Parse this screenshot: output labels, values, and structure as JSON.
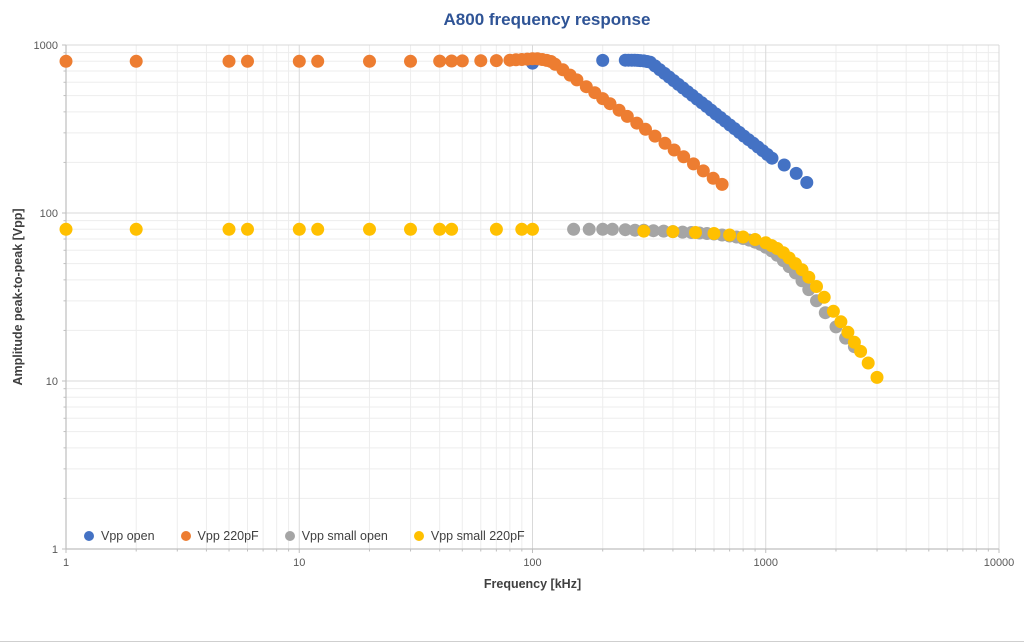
{
  "chart_data": {
    "type": "scatter",
    "title": "A800 frequency response",
    "xlabel": "Frequency [kHz]",
    "ylabel": "Amplitude peak-to-peak [Vpp]",
    "xscale": "log",
    "yscale": "log",
    "xlim": [
      1,
      10000
    ],
    "ylim": [
      1,
      1000
    ],
    "x_tick_labels": [
      "1",
      "10",
      "100",
      "1000",
      "10000"
    ],
    "y_tick_labels": [
      "1",
      "10",
      "100",
      "1000"
    ],
    "grid": "major and minor log gridlines",
    "legend_position": "bottom-left inside plot",
    "colors": {
      "title": "#2F5496",
      "axis_text": "#595959",
      "axis_title_text": "#404040",
      "major_grid": "#D9D9D9",
      "minor_grid": "#EDEDED",
      "axis_line": "#BFBFBF"
    },
    "series": [
      {
        "name": "Vpp open",
        "color": "#4472C4",
        "points": [
          [
            100,
            780
          ],
          [
            200,
            810
          ],
          [
            250,
            812
          ],
          [
            258,
            812
          ],
          [
            266,
            812
          ],
          [
            274,
            812
          ],
          [
            282,
            810
          ],
          [
            290,
            808
          ],
          [
            300,
            804
          ],
          [
            310,
            798
          ],
          [
            320,
            790
          ],
          [
            335,
            751
          ],
          [
            351,
            714
          ],
          [
            368,
            678
          ],
          [
            385,
            645
          ],
          [
            403,
            614
          ],
          [
            422,
            583
          ],
          [
            442,
            555
          ],
          [
            463,
            527
          ],
          [
            485,
            501
          ],
          [
            508,
            476
          ],
          [
            532,
            453
          ],
          [
            557,
            431
          ],
          [
            583,
            410
          ],
          [
            611,
            389
          ],
          [
            640,
            370
          ],
          [
            670,
            352
          ],
          [
            702,
            334
          ],
          [
            735,
            318
          ],
          [
            770,
            302
          ],
          [
            806,
            287
          ],
          [
            844,
            273
          ],
          [
            884,
            260
          ],
          [
            926,
            247
          ],
          [
            970,
            235
          ],
          [
            1016,
            223
          ],
          [
            1064,
            212
          ],
          [
            1200,
            193
          ],
          [
            1350,
            172
          ],
          [
            1500,
            152
          ]
        ]
      },
      {
        "name": "Vpp 220pF",
        "color": "#ED7D31",
        "points": [
          [
            1,
            800
          ],
          [
            2,
            800
          ],
          [
            5,
            800
          ],
          [
            6,
            800
          ],
          [
            10,
            800
          ],
          [
            12,
            800
          ],
          [
            20,
            800
          ],
          [
            30,
            800
          ],
          [
            40,
            802
          ],
          [
            45,
            803
          ],
          [
            50,
            804
          ],
          [
            60,
            806
          ],
          [
            70,
            808
          ],
          [
            80,
            812
          ],
          [
            85,
            816
          ],
          [
            90,
            820
          ],
          [
            95,
            824
          ],
          [
            100,
            828
          ],
          [
            105,
            828
          ],
          [
            110,
            820
          ],
          [
            115,
            810
          ],
          [
            120,
            798
          ],
          [
            125,
            768
          ],
          [
            135,
            712
          ],
          [
            145,
            662
          ],
          [
            155,
            620
          ],
          [
            170,
            565
          ],
          [
            185,
            520
          ],
          [
            200,
            480
          ],
          [
            215,
            447
          ],
          [
            235,
            409
          ],
          [
            255,
            376
          ],
          [
            280,
            343
          ],
          [
            305,
            315
          ],
          [
            335,
            287
          ],
          [
            370,
            260
          ],
          [
            405,
            237
          ],
          [
            445,
            216
          ],
          [
            490,
            196
          ],
          [
            540,
            178
          ],
          [
            595,
            161
          ],
          [
            650,
            148
          ]
        ]
      },
      {
        "name": "Vpp small open",
        "color": "#A5A5A5",
        "points": [
          [
            150,
            80
          ],
          [
            175,
            80
          ],
          [
            200,
            80
          ],
          [
            220,
            80
          ],
          [
            250,
            79.5
          ],
          [
            275,
            79
          ],
          [
            300,
            79
          ],
          [
            330,
            78.5
          ],
          [
            365,
            78
          ],
          [
            400,
            77.5
          ],
          [
            440,
            77
          ],
          [
            480,
            76.5
          ],
          [
            520,
            76
          ],
          [
            560,
            75.5
          ],
          [
            600,
            75
          ],
          [
            650,
            74
          ],
          [
            700,
            73
          ],
          [
            750,
            72
          ],
          [
            800,
            70.5
          ],
          [
            850,
            69
          ],
          [
            900,
            67
          ],
          [
            950,
            65
          ],
          [
            1000,
            62.5
          ],
          [
            1060,
            59.5
          ],
          [
            1120,
            56
          ],
          [
            1190,
            52
          ],
          [
            1260,
            48
          ],
          [
            1340,
            44
          ],
          [
            1430,
            39.5
          ],
          [
            1530,
            35
          ],
          [
            1650,
            30
          ],
          [
            1800,
            25.5
          ],
          [
            2000,
            21
          ],
          [
            2200,
            18
          ],
          [
            2400,
            16
          ]
        ]
      },
      {
        "name": "Vpp small 220pF",
        "color": "#FFC000",
        "points": [
          [
            1,
            80
          ],
          [
            2,
            80
          ],
          [
            5,
            80
          ],
          [
            6,
            80
          ],
          [
            10,
            80
          ],
          [
            12,
            80
          ],
          [
            20,
            80
          ],
          [
            30,
            80
          ],
          [
            40,
            80
          ],
          [
            45,
            80
          ],
          [
            70,
            80
          ],
          [
            90,
            80
          ],
          [
            100,
            80
          ],
          [
            300,
            78
          ],
          [
            400,
            77.5
          ],
          [
            500,
            76.5
          ],
          [
            600,
            75.5
          ],
          [
            700,
            74
          ],
          [
            800,
            72
          ],
          [
            900,
            69.5
          ],
          [
            1000,
            66.5
          ],
          [
            1060,
            64
          ],
          [
            1120,
            61.5
          ],
          [
            1190,
            58
          ],
          [
            1260,
            54
          ],
          [
            1340,
            50
          ],
          [
            1430,
            46
          ],
          [
            1530,
            41.5
          ],
          [
            1650,
            36.5
          ],
          [
            1780,
            31.5
          ],
          [
            1950,
            26
          ],
          [
            2100,
            22.5
          ],
          [
            2250,
            19.5
          ],
          [
            2400,
            17
          ],
          [
            2550,
            15
          ],
          [
            2750,
            12.8
          ],
          [
            3000,
            10.5
          ]
        ]
      }
    ]
  }
}
